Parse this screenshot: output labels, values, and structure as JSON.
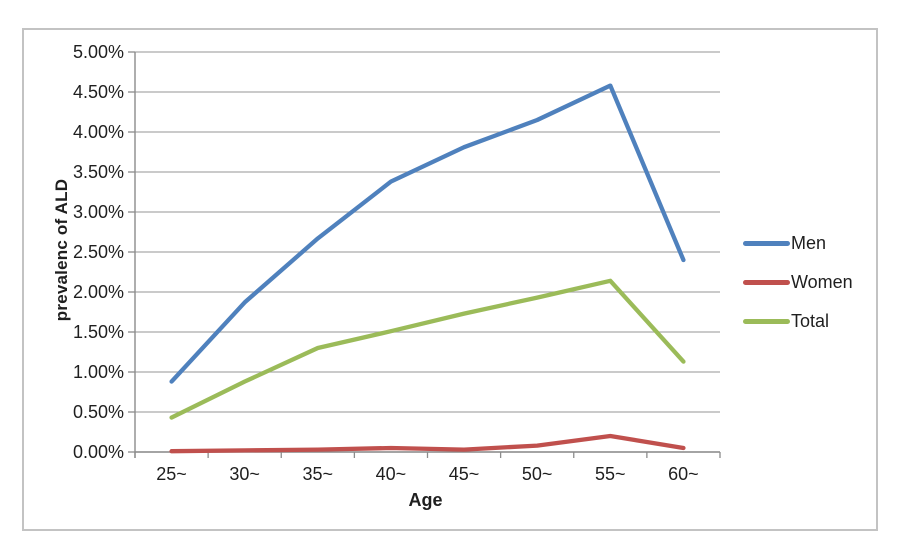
{
  "chart_data": {
    "type": "line",
    "title": "",
    "xlabel": "Age",
    "ylabel": "prevalenc of ALD",
    "categories": [
      "25~",
      "30~",
      "35~",
      "40~",
      "45~",
      "50~",
      "55~",
      "60~"
    ],
    "series": [
      {
        "name": "Men",
        "color": "#4F81BD",
        "values": [
          0.88,
          1.87,
          2.67,
          3.38,
          3.81,
          4.15,
          4.58,
          2.4
        ]
      },
      {
        "name": "Women",
        "color": "#C0504D",
        "values": [
          0.01,
          0.02,
          0.03,
          0.05,
          0.03,
          0.08,
          0.2,
          0.05
        ]
      },
      {
        "name": "Total",
        "color": "#9BBB59",
        "values": [
          0.43,
          0.88,
          1.3,
          1.51,
          1.73,
          1.93,
          2.14,
          1.13
        ]
      }
    ],
    "y_axis": {
      "min": 0,
      "max": 5,
      "step": 0.5,
      "unit": "%"
    },
    "y_tick_labels": [
      "0.00%",
      "0.50%",
      "1.00%",
      "1.50%",
      "2.00%",
      "2.50%",
      "3.00%",
      "3.50%",
      "4.00%",
      "4.50%",
      "5.00%"
    ],
    "grid": true,
    "legend_position": "right",
    "colors": {
      "gridline": "#ababab",
      "axis": "#8c8c8c",
      "text": "#1f1f1f",
      "frame_border": "#c3c3c3",
      "background": "#ffffff"
    }
  }
}
